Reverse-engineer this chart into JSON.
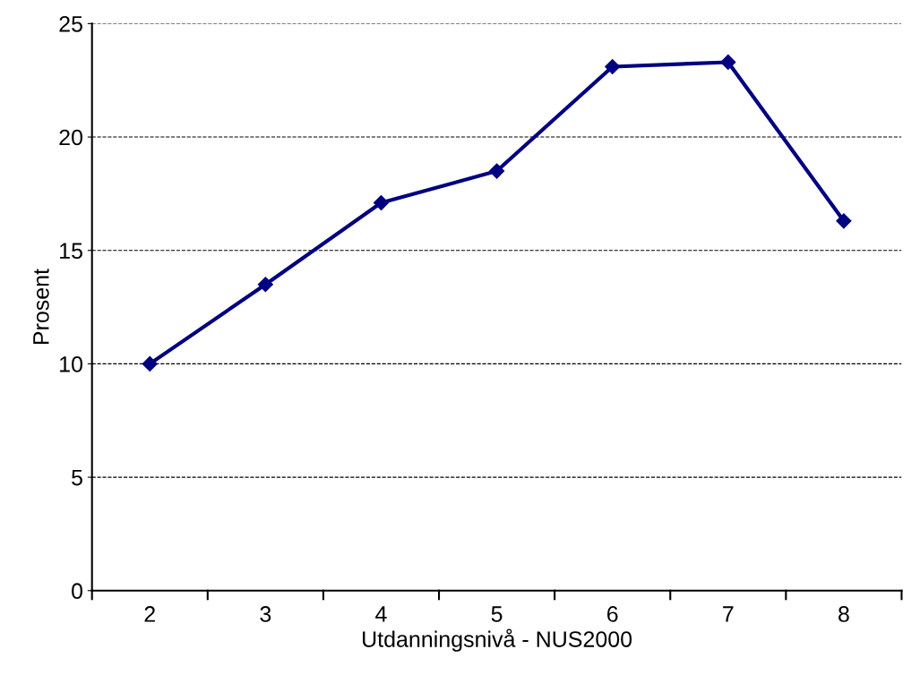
{
  "chart_data": {
    "type": "line",
    "xlabel": "Utdanningsnivå - NUS2000",
    "ylabel": "Prosent",
    "categories": [
      "2",
      "3",
      "4",
      "5",
      "6",
      "7",
      "8"
    ],
    "series": [
      {
        "color": "#000080",
        "values": [
          10.0,
          13.5,
          17.1,
          18.5,
          23.1,
          23.3,
          16.3
        ]
      }
    ],
    "ylim": [
      0,
      25
    ],
    "yticks": [
      0,
      5,
      10,
      15,
      20,
      25
    ],
    "grid": "y",
    "marker": "diamond",
    "line_style": "solid",
    "legend": false
  }
}
